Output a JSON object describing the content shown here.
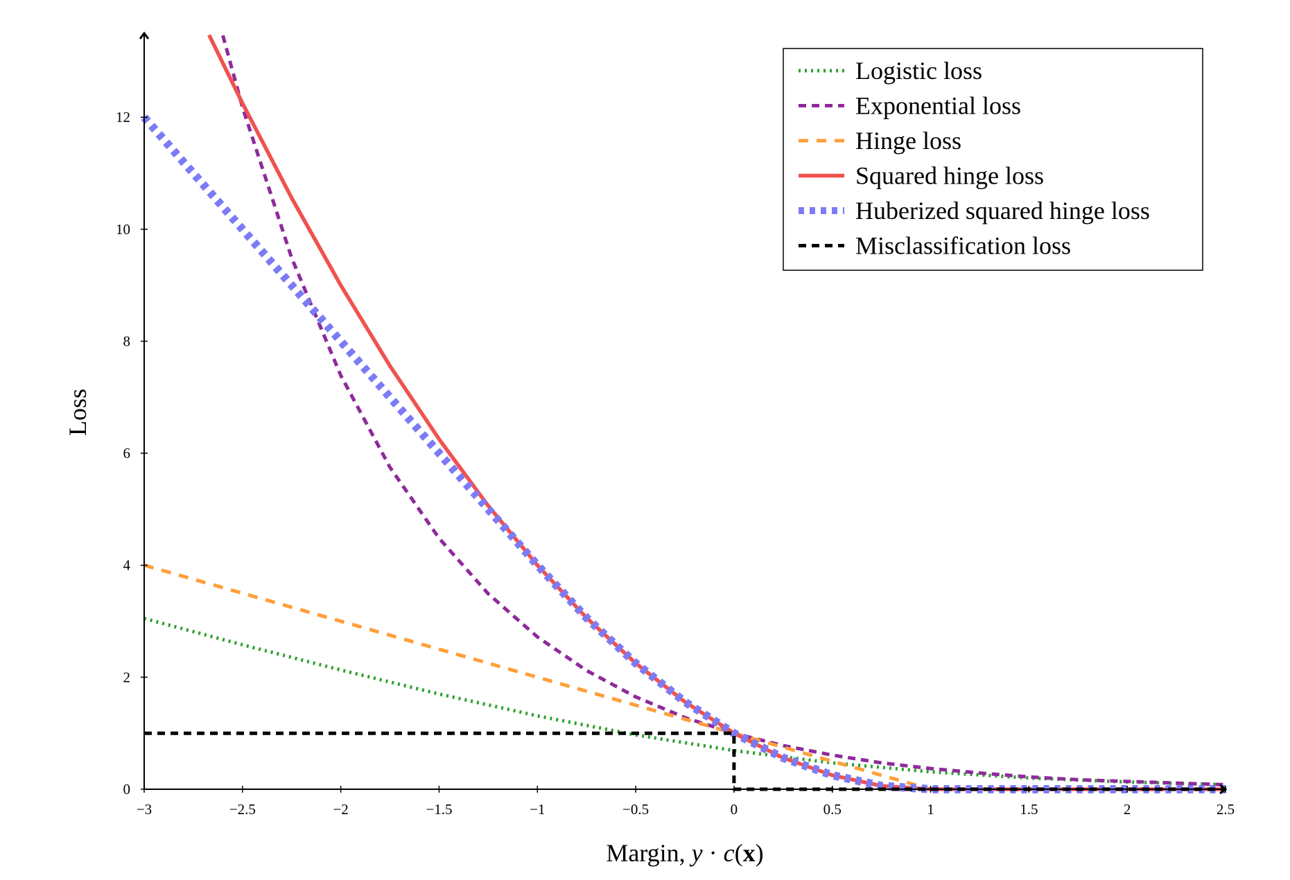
{
  "chart_data": {
    "type": "line",
    "xlabel": "Margin, y · c(x)",
    "xlabel_parts": {
      "prefix": "Margin, ",
      "y": "y",
      "dot": " · ",
      "c": "c",
      "open": "(",
      "x": "x",
      "close": ")"
    },
    "ylabel": "Loss",
    "xlim": [
      -3,
      2.5
    ],
    "ylim": [
      0,
      13.5
    ],
    "x_ticks": [
      {
        "value": -3,
        "label": "−3"
      },
      {
        "value": -2.5,
        "label": "−2.5"
      },
      {
        "value": -2,
        "label": "−2"
      },
      {
        "value": -1.5,
        "label": "−1.5"
      },
      {
        "value": -1,
        "label": "−1"
      },
      {
        "value": -0.5,
        "label": "−0.5"
      },
      {
        "value": 0,
        "label": "0"
      },
      {
        "value": 0.5,
        "label": "0.5"
      },
      {
        "value": 1,
        "label": "1"
      },
      {
        "value": 1.5,
        "label": "1.5"
      },
      {
        "value": 2,
        "label": "2"
      },
      {
        "value": 2.5,
        "label": "2.5"
      }
    ],
    "y_ticks": [
      {
        "value": 0,
        "label": "0"
      },
      {
        "value": 2,
        "label": "2"
      },
      {
        "value": 4,
        "label": "4"
      },
      {
        "value": 6,
        "label": "6"
      },
      {
        "value": 8,
        "label": "8"
      },
      {
        "value": 10,
        "label": "10"
      },
      {
        "value": 12,
        "label": "12"
      }
    ],
    "grid": false,
    "legend_position": "top-right",
    "series": [
      {
        "name": "Logistic loss",
        "color": "#2ca02c",
        "style": "dotted",
        "x": [
          -3,
          -2.5,
          -2,
          -1.5,
          -1,
          -0.5,
          0,
          0.5,
          1,
          1.5,
          2,
          2.5
        ],
        "y": [
          3.05,
          2.58,
          2.13,
          1.7,
          1.31,
          0.97,
          0.69,
          0.47,
          0.31,
          0.2,
          0.13,
          0.08
        ]
      },
      {
        "name": "Exponential loss",
        "color": "#8e2a9b",
        "style": "dashed",
        "x": [
          -2.6,
          -2.5,
          -2.25,
          -2,
          -1.75,
          -1.5,
          -1.25,
          -1,
          -0.75,
          -0.5,
          -0.25,
          0,
          0.25,
          0.5,
          0.75,
          1,
          1.25,
          1.5,
          1.75,
          2,
          2.25,
          2.5
        ],
        "y": [
          13.46,
          12.18,
          9.49,
          7.39,
          5.75,
          4.48,
          3.49,
          2.72,
          2.12,
          1.65,
          1.28,
          1.0,
          0.78,
          0.61,
          0.47,
          0.37,
          0.29,
          0.22,
          0.17,
          0.14,
          0.11,
          0.08
        ]
      },
      {
        "name": "Hinge loss",
        "color": "#ff9f3a",
        "style": "dashed-long",
        "x": [
          -3,
          1,
          2.5
        ],
        "y": [
          4,
          0,
          0
        ]
      },
      {
        "name": "Squared hinge loss",
        "color": "#f0524f",
        "style": "solid",
        "x": [
          -2.67,
          -2.5,
          -2.25,
          -2,
          -1.75,
          -1.5,
          -1.25,
          -1,
          -0.75,
          -0.5,
          -0.25,
          0,
          0.25,
          0.5,
          0.75,
          1,
          1.5,
          2,
          2.5
        ],
        "y": [
          13.47,
          12.25,
          10.56,
          9.0,
          7.56,
          6.25,
          5.06,
          4.0,
          3.06,
          2.25,
          1.56,
          1.0,
          0.56,
          0.25,
          0.06,
          0,
          0,
          0,
          0
        ]
      },
      {
        "name": "Huberized squared hinge loss",
        "color": "#7b7bf5",
        "style": "dotted-heavy",
        "x": [
          -3,
          -2.5,
          -2,
          -1.5,
          -1.25,
          -1,
          -0.75,
          -0.5,
          -0.25,
          0,
          0.25,
          0.5,
          0.75,
          1,
          1.5,
          2,
          2.5
        ],
        "y": [
          12,
          10,
          8,
          6,
          5.0,
          4.0,
          3.06,
          2.25,
          1.56,
          1.0,
          0.56,
          0.25,
          0.06,
          0,
          0,
          0,
          0
        ]
      },
      {
        "name": "Misclassification loss",
        "color": "#000000",
        "style": "dashed-black",
        "x": [
          -3,
          0,
          0,
          2.5
        ],
        "y": [
          1,
          1,
          0,
          0
        ]
      }
    ]
  }
}
